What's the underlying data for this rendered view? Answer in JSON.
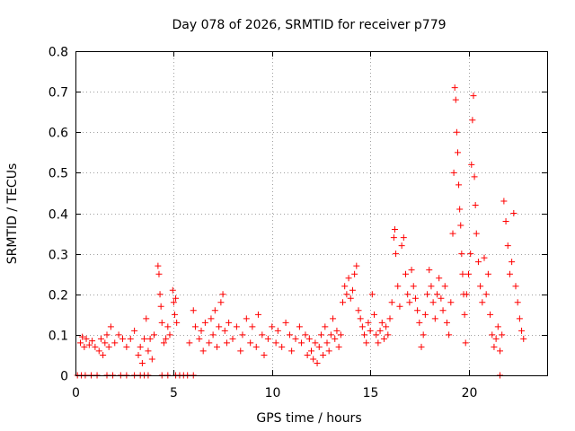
{
  "chart_data": {
    "type": "scatter",
    "title": "Day 078 of 2026, SRMTID for receiver p779",
    "xlabel": "GPS time / hours",
    "ylabel": "SRMTID / TECUs",
    "xlim": [
      0,
      24
    ],
    "ylim": [
      0,
      0.8
    ],
    "x_ticks": [
      0,
      5,
      10,
      15,
      20
    ],
    "x_tick_labels": [
      "0",
      "5",
      "10",
      "15",
      "20"
    ],
    "y_ticks": [
      0,
      0.1,
      0.2,
      0.3,
      0.4,
      0.5,
      0.6,
      0.7,
      0.8
    ],
    "y_tick_labels": [
      "0",
      "0.1",
      "0.2",
      "0.3",
      "0.4",
      "0.5",
      "0.6",
      "0.7",
      "0.8"
    ],
    "grid": true,
    "marker": "+",
    "colors": {
      "marker": "#ff0000",
      "grid": "#a0a0a0",
      "axes": "#000000"
    },
    "series": [
      {
        "name": "SRMTID p779",
        "points": [
          [
            0.1,
            0.0
          ],
          [
            0.3,
            0.0
          ],
          [
            0.5,
            0.0
          ],
          [
            0.8,
            0.0
          ],
          [
            1.1,
            0.0
          ],
          [
            1.6,
            0.0
          ],
          [
            1.9,
            0.0
          ],
          [
            2.3,
            0.0
          ],
          [
            2.6,
            0.0
          ],
          [
            3.0,
            0.0
          ],
          [
            3.3,
            0.0
          ],
          [
            3.5,
            0.0
          ],
          [
            3.7,
            0.0
          ],
          [
            4.4,
            0.0
          ],
          [
            4.7,
            0.0
          ],
          [
            5.1,
            0.0
          ],
          [
            5.3,
            0.0
          ],
          [
            5.5,
            0.0
          ],
          [
            5.7,
            0.0
          ],
          [
            6.0,
            0.0
          ],
          [
            21.6,
            0.0
          ],
          [
            0.25,
            0.08
          ],
          [
            0.35,
            0.095
          ],
          [
            0.45,
            0.07
          ],
          [
            0.55,
            0.09
          ],
          [
            0.7,
            0.075
          ],
          [
            0.85,
            0.085
          ],
          [
            1.0,
            0.07
          ],
          [
            1.2,
            0.06
          ],
          [
            1.3,
            0.09
          ],
          [
            1.4,
            0.05
          ],
          [
            1.5,
            0.08
          ],
          [
            1.6,
            0.1
          ],
          [
            1.7,
            0.07
          ],
          [
            1.8,
            0.12
          ],
          [
            2.0,
            0.08
          ],
          [
            2.2,
            0.1
          ],
          [
            2.4,
            0.09
          ],
          [
            2.6,
            0.07
          ],
          [
            2.8,
            0.09
          ],
          [
            3.0,
            0.11
          ],
          [
            3.2,
            0.05
          ],
          [
            3.3,
            0.07
          ],
          [
            3.4,
            0.03
          ],
          [
            3.5,
            0.09
          ],
          [
            3.6,
            0.14
          ],
          [
            3.7,
            0.06
          ],
          [
            3.8,
            0.09
          ],
          [
            3.9,
            0.04
          ],
          [
            4.0,
            0.1
          ],
          [
            4.2,
            0.27
          ],
          [
            4.25,
            0.25
          ],
          [
            4.3,
            0.2
          ],
          [
            4.35,
            0.17
          ],
          [
            4.4,
            0.13
          ],
          [
            4.5,
            0.08
          ],
          [
            4.6,
            0.09
          ],
          [
            4.7,
            0.12
          ],
          [
            4.8,
            0.1
          ],
          [
            4.95,
            0.21
          ],
          [
            5.0,
            0.18
          ],
          [
            5.05,
            0.15
          ],
          [
            5.1,
            0.19
          ],
          [
            5.15,
            0.13
          ],
          [
            5.8,
            0.08
          ],
          [
            6.0,
            0.16
          ],
          [
            6.1,
            0.12
          ],
          [
            6.3,
            0.09
          ],
          [
            6.4,
            0.11
          ],
          [
            6.5,
            0.06
          ],
          [
            6.6,
            0.13
          ],
          [
            6.8,
            0.08
          ],
          [
            6.9,
            0.14
          ],
          [
            7.0,
            0.1
          ],
          [
            7.1,
            0.16
          ],
          [
            7.2,
            0.07
          ],
          [
            7.3,
            0.12
          ],
          [
            7.4,
            0.18
          ],
          [
            7.5,
            0.2
          ],
          [
            7.6,
            0.11
          ],
          [
            7.7,
            0.08
          ],
          [
            7.8,
            0.13
          ],
          [
            8.0,
            0.09
          ],
          [
            8.2,
            0.12
          ],
          [
            8.4,
            0.06
          ],
          [
            8.5,
            0.1
          ],
          [
            8.7,
            0.14
          ],
          [
            8.9,
            0.08
          ],
          [
            9.0,
            0.12
          ],
          [
            9.2,
            0.07
          ],
          [
            9.3,
            0.15
          ],
          [
            9.5,
            0.1
          ],
          [
            9.6,
            0.05
          ],
          [
            9.8,
            0.09
          ],
          [
            10.0,
            0.12
          ],
          [
            10.2,
            0.08
          ],
          [
            10.3,
            0.11
          ],
          [
            10.5,
            0.07
          ],
          [
            10.7,
            0.13
          ],
          [
            10.9,
            0.1
          ],
          [
            11.0,
            0.06
          ],
          [
            11.2,
            0.09
          ],
          [
            11.4,
            0.12
          ],
          [
            11.5,
            0.08
          ],
          [
            11.7,
            0.1
          ],
          [
            11.8,
            0.05
          ],
          [
            11.9,
            0.09
          ],
          [
            12.0,
            0.06
          ],
          [
            12.1,
            0.04
          ],
          [
            12.2,
            0.08
          ],
          [
            12.3,
            0.03
          ],
          [
            12.4,
            0.07
          ],
          [
            12.5,
            0.1
          ],
          [
            12.6,
            0.05
          ],
          [
            12.7,
            0.12
          ],
          [
            12.8,
            0.08
          ],
          [
            12.9,
            0.06
          ],
          [
            13.0,
            0.1
          ],
          [
            13.1,
            0.14
          ],
          [
            13.2,
            0.09
          ],
          [
            13.3,
            0.11
          ],
          [
            13.4,
            0.07
          ],
          [
            13.5,
            0.1
          ],
          [
            13.6,
            0.18
          ],
          [
            13.7,
            0.22
          ],
          [
            13.8,
            0.2
          ],
          [
            13.9,
            0.24
          ],
          [
            14.0,
            0.19
          ],
          [
            14.1,
            0.21
          ],
          [
            14.2,
            0.25
          ],
          [
            14.3,
            0.27
          ],
          [
            14.4,
            0.16
          ],
          [
            14.5,
            0.14
          ],
          [
            14.6,
            0.12
          ],
          [
            14.7,
            0.1
          ],
          [
            14.8,
            0.08
          ],
          [
            14.9,
            0.13
          ],
          [
            15.0,
            0.11
          ],
          [
            15.1,
            0.2
          ],
          [
            15.2,
            0.15
          ],
          [
            15.3,
            0.1
          ],
          [
            15.4,
            0.08
          ],
          [
            15.5,
            0.11
          ],
          [
            15.6,
            0.13
          ],
          [
            15.7,
            0.09
          ],
          [
            15.8,
            0.12
          ],
          [
            15.9,
            0.1
          ],
          [
            16.0,
            0.14
          ],
          [
            16.1,
            0.18
          ],
          [
            16.2,
            0.34
          ],
          [
            16.25,
            0.36
          ],
          [
            16.3,
            0.3
          ],
          [
            16.4,
            0.22
          ],
          [
            16.5,
            0.17
          ],
          [
            16.6,
            0.32
          ],
          [
            16.7,
            0.34
          ],
          [
            16.8,
            0.25
          ],
          [
            16.9,
            0.2
          ],
          [
            17.0,
            0.18
          ],
          [
            17.1,
            0.26
          ],
          [
            17.2,
            0.22
          ],
          [
            17.3,
            0.19
          ],
          [
            17.4,
            0.16
          ],
          [
            17.5,
            0.13
          ],
          [
            17.6,
            0.07
          ],
          [
            17.7,
            0.1
          ],
          [
            17.8,
            0.15
          ],
          [
            17.9,
            0.2
          ],
          [
            18.0,
            0.26
          ],
          [
            18.1,
            0.22
          ],
          [
            18.2,
            0.18
          ],
          [
            18.3,
            0.14
          ],
          [
            18.4,
            0.2
          ],
          [
            18.5,
            0.24
          ],
          [
            18.6,
            0.19
          ],
          [
            18.7,
            0.16
          ],
          [
            18.8,
            0.22
          ],
          [
            18.9,
            0.13
          ],
          [
            19.0,
            0.1
          ],
          [
            19.1,
            0.18
          ],
          [
            19.2,
            0.35
          ],
          [
            19.25,
            0.5
          ],
          [
            19.3,
            0.71
          ],
          [
            19.35,
            0.68
          ],
          [
            19.4,
            0.6
          ],
          [
            19.45,
            0.55
          ],
          [
            19.5,
            0.47
          ],
          [
            19.55,
            0.41
          ],
          [
            19.6,
            0.37
          ],
          [
            19.65,
            0.3
          ],
          [
            19.7,
            0.25
          ],
          [
            19.75,
            0.2
          ],
          [
            19.8,
            0.15
          ],
          [
            19.85,
            0.08
          ],
          [
            19.9,
            0.2
          ],
          [
            20.0,
            0.25
          ],
          [
            20.1,
            0.3
          ],
          [
            20.15,
            0.52
          ],
          [
            20.2,
            0.63
          ],
          [
            20.25,
            0.69
          ],
          [
            20.3,
            0.49
          ],
          [
            20.35,
            0.42
          ],
          [
            20.4,
            0.35
          ],
          [
            20.5,
            0.28
          ],
          [
            20.6,
            0.22
          ],
          [
            20.7,
            0.18
          ],
          [
            20.8,
            0.29
          ],
          [
            20.9,
            0.2
          ],
          [
            21.0,
            0.25
          ],
          [
            21.1,
            0.15
          ],
          [
            21.2,
            0.1
          ],
          [
            21.3,
            0.07
          ],
          [
            21.4,
            0.09
          ],
          [
            21.5,
            0.12
          ],
          [
            21.6,
            0.06
          ],
          [
            21.7,
            0.1
          ],
          [
            21.8,
            0.43
          ],
          [
            21.9,
            0.38
          ],
          [
            22.0,
            0.32
          ],
          [
            22.1,
            0.25
          ],
          [
            22.2,
            0.28
          ],
          [
            22.3,
            0.4
          ],
          [
            22.4,
            0.22
          ],
          [
            22.5,
            0.18
          ],
          [
            22.6,
            0.14
          ],
          [
            22.7,
            0.11
          ],
          [
            22.8,
            0.09
          ]
        ]
      }
    ]
  }
}
